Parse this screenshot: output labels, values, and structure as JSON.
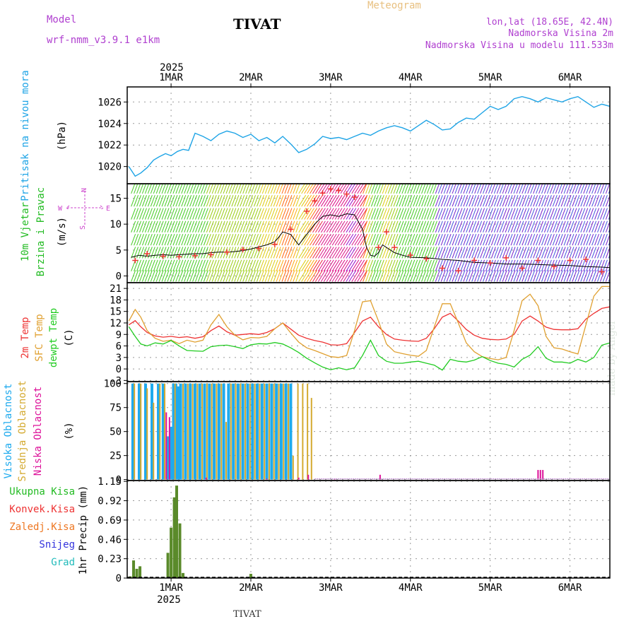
{
  "header": {
    "model_label": "Model",
    "model_name": "wrf-nmm_v3.9.1 e1km",
    "title": "TIVAT",
    "meteogram": "Meteogram",
    "lonlat": "lon,lat (18.65E, 42.4N)",
    "elevation": "Nadmorska Visina 2m",
    "model_elevation": "Nadmorska Visina u modelu 111.533m"
  },
  "footer": {
    "station": "TIVAT"
  },
  "watermark": "made by Angel",
  "colors": {
    "pressure": "#1ea4e6",
    "temp2m": "#ee3333",
    "sfc": "#e0a030",
    "dewpt": "#22cc22",
    "visoka": "#1eaaee",
    "srednja": "#d4aa30",
    "niska": "#dd1199",
    "ukupna": "#22bb22",
    "konvek": "#ee3333",
    "zaledj": "#ee7722",
    "snijeg": "#3333dd",
    "grad": "#22bbbb",
    "precip_bar": "#5a8a2a",
    "windspeed_line": "#000000",
    "gust_marker": "#ee3333",
    "compass": "#cc44cc"
  },
  "chart_data": [
    {
      "panel": "pressure",
      "type": "line",
      "ylabels": [
        "Pritisak na nivou mora",
        "(hPa)"
      ],
      "yticks": [
        1020,
        1022,
        1024,
        1026
      ],
      "ylim": [
        1018.4,
        1027.4
      ],
      "xlim": [
        0.45,
        6.5
      ],
      "x_tick_labels": [
        "1MAR",
        "2MAR",
        "3MAR",
        "4MAR",
        "5MAR",
        "6MAR"
      ],
      "x_year_label": "2025",
      "grid": true,
      "x": [
        0.47,
        0.55,
        0.62,
        0.7,
        0.78,
        0.85,
        0.93,
        1.0,
        1.08,
        1.15,
        1.22,
        1.3,
        1.4,
        1.5,
        1.6,
        1.7,
        1.8,
        1.9,
        2.0,
        2.1,
        2.2,
        2.3,
        2.4,
        2.5,
        2.6,
        2.7,
        2.8,
        2.9,
        3.0,
        3.1,
        3.2,
        3.3,
        3.4,
        3.5,
        3.6,
        3.7,
        3.8,
        3.9,
        4.0,
        4.1,
        4.2,
        4.3,
        4.4,
        4.5,
        4.6,
        4.7,
        4.8,
        4.9,
        5.0,
        5.1,
        5.2,
        5.3,
        5.4,
        5.5,
        5.6,
        5.7,
        5.8,
        5.9,
        6.0,
        6.1,
        6.2,
        6.3,
        6.4,
        6.5
      ],
      "y": [
        1020.0,
        1019.1,
        1019.4,
        1019.9,
        1020.6,
        1020.9,
        1021.2,
        1021.0,
        1021.4,
        1021.6,
        1021.5,
        1023.1,
        1022.8,
        1022.4,
        1023.0,
        1023.3,
        1023.1,
        1022.7,
        1023.0,
        1022.4,
        1022.7,
        1022.2,
        1022.8,
        1022.1,
        1021.3,
        1021.6,
        1022.1,
        1022.8,
        1022.6,
        1022.7,
        1022.5,
        1022.8,
        1023.1,
        1022.9,
        1023.3,
        1023.6,
        1023.8,
        1023.6,
        1023.3,
        1023.8,
        1024.3,
        1023.9,
        1023.4,
        1023.5,
        1024.1,
        1024.5,
        1024.4,
        1025.0,
        1025.6,
        1025.3,
        1025.6,
        1026.3,
        1026.5,
        1026.3,
        1026.0,
        1026.4,
        1026.2,
        1026.0,
        1026.3,
        1026.5,
        1026.0,
        1025.5,
        1025.8,
        1025.6
      ]
    },
    {
      "panel": "wind",
      "type": "wind_barbs_line",
      "ylabels": [
        "10m Vjetar",
        "Brzina i Pravac",
        "(m/s)"
      ],
      "compass": {
        "n": "N",
        "s": "S",
        "e": "E",
        "w": "W"
      },
      "yticks": [
        0,
        5,
        10,
        15
      ],
      "ylim": [
        -1.3,
        17.8
      ],
      "x": [
        0.5,
        0.6,
        0.7,
        0.8,
        0.9,
        1.0,
        1.1,
        1.2,
        1.3,
        1.4,
        1.5,
        1.6,
        1.7,
        1.8,
        1.9,
        2.0,
        2.1,
        2.2,
        2.3,
        2.35,
        2.4,
        2.5,
        2.6,
        2.7,
        2.8,
        2.9,
        3.0,
        3.1,
        3.2,
        3.3,
        3.4,
        3.45,
        3.5,
        3.55,
        3.6,
        3.65,
        3.7,
        3.8,
        3.9,
        4.0,
        4.2,
        4.4,
        4.6,
        4.8,
        5.0,
        5.2,
        5.4,
        5.6,
        5.8,
        6.0,
        6.2,
        6.4,
        6.5
      ],
      "speed": [
        3.6,
        4.0,
        3.8,
        4.0,
        4.1,
        4.0,
        4.1,
        4.2,
        4.3,
        4.3,
        4.5,
        4.6,
        4.6,
        4.7,
        4.9,
        5.2,
        5.6,
        6.0,
        6.6,
        7.5,
        8.5,
        8.0,
        6.0,
        8.0,
        10.0,
        11.5,
        11.8,
        11.5,
        12.0,
        11.8,
        9.0,
        5.5,
        4.0,
        3.8,
        4.5,
        6.0,
        5.5,
        4.5,
        4.0,
        3.6,
        3.5,
        3.2,
        3.0,
        2.6,
        2.5,
        2.3,
        2.3,
        2.2,
        2.1,
        2.0,
        1.8,
        1.7,
        1.6
      ],
      "gust_x": [
        0.55,
        0.7,
        0.9,
        1.1,
        1.3,
        1.5,
        1.7,
        1.9,
        2.1,
        2.3,
        2.5,
        2.7,
        2.8,
        2.9,
        3.0,
        3.1,
        3.2,
        3.3,
        3.6,
        3.7,
        3.8,
        4.0,
        4.2,
        4.4,
        4.6,
        4.8,
        5.0,
        5.2,
        5.4,
        5.6,
        5.8,
        6.0,
        6.2,
        6.4
      ],
      "gust": [
        3.0,
        4.3,
        3.8,
        3.7,
        3.9,
        4.1,
        4.6,
        5.1,
        5.3,
        6.1,
        9.0,
        12.5,
        14.5,
        16.0,
        16.8,
        16.5,
        15.8,
        15.2,
        5.5,
        8.5,
        5.5,
        4.0,
        3.3,
        1.5,
        1.0,
        3.0,
        2.5,
        3.5,
        1.5,
        3.0,
        1.8,
        3.0,
        3.2,
        0.8
      ]
    },
    {
      "panel": "temperature",
      "type": "line",
      "ylabels": [
        "2m Temp",
        "SFC Temp",
        "dewpt Temp",
        "(C)"
      ],
      "yticks": [
        -3,
        0,
        3,
        6,
        9,
        12,
        15,
        18,
        21
      ],
      "ylim": [
        -3.3,
        22.5
      ],
      "x": [
        0.47,
        0.55,
        0.62,
        0.7,
        0.8,
        0.9,
        1.0,
        1.1,
        1.2,
        1.3,
        1.4,
        1.5,
        1.6,
        1.7,
        1.8,
        1.9,
        2.0,
        2.1,
        2.2,
        2.3,
        2.4,
        2.5,
        2.6,
        2.7,
        2.8,
        2.9,
        3.0,
        3.1,
        3.2,
        3.3,
        3.4,
        3.5,
        3.6,
        3.7,
        3.8,
        3.9,
        4.0,
        4.1,
        4.2,
        4.3,
        4.4,
        4.5,
        4.6,
        4.7,
        4.8,
        4.9,
        5.0,
        5.1,
        5.2,
        5.3,
        5.4,
        5.5,
        5.6,
        5.7,
        5.8,
        5.9,
        6.0,
        6.1,
        6.2,
        6.3,
        6.4,
        6.5
      ],
      "series": [
        {
          "name": "2m Temp",
          "y": [
            11.5,
            12.6,
            11.0,
            9.5,
            8.6,
            8.3,
            8.5,
            8.2,
            8.4,
            8.0,
            8.4,
            10.0,
            11.2,
            9.7,
            8.8,
            9.0,
            9.2,
            9.0,
            9.5,
            10.5,
            12.0,
            10.4,
            8.8,
            8.0,
            7.4,
            7.0,
            6.3,
            6.2,
            6.6,
            9.5,
            12.5,
            13.5,
            11.0,
            9.0,
            7.8,
            7.5,
            7.3,
            7.2,
            8.0,
            10.5,
            13.5,
            14.5,
            12.5,
            10.3,
            8.8,
            8.0,
            7.7,
            7.6,
            7.8,
            9.0,
            12.5,
            13.8,
            12.5,
            10.9,
            10.3,
            10.2,
            10.2,
            10.5,
            13.0,
            14.5,
            15.8,
            16.2
          ]
        },
        {
          "name": "SFC Temp",
          "y": [
            12.5,
            15.5,
            13.5,
            10.0,
            8.0,
            7.2,
            7.5,
            6.6,
            7.5,
            7.0,
            7.5,
            11.5,
            14.2,
            11.0,
            8.8,
            7.6,
            8.2,
            8.1,
            8.5,
            10.5,
            12.0,
            9.4,
            7.0,
            5.5,
            4.8,
            4.0,
            3.2,
            3.0,
            3.5,
            10.0,
            17.5,
            17.8,
            12.5,
            6.5,
            4.5,
            4.0,
            3.6,
            3.3,
            4.8,
            11.0,
            17.0,
            17.0,
            12.0,
            6.8,
            4.5,
            3.2,
            2.7,
            2.4,
            3.0,
            10.0,
            17.8,
            19.5,
            16.5,
            8.5,
            5.5,
            5.2,
            4.5,
            3.9,
            11.5,
            19.0,
            21.5,
            21.5
          ]
        },
        {
          "name": "dewpt Temp",
          "y": [
            11.0,
            8.5,
            6.5,
            6.0,
            6.8,
            6.5,
            7.4,
            6.0,
            4.8,
            4.7,
            4.6,
            5.8,
            6.1,
            6.2,
            5.8,
            5.3,
            6.3,
            6.6,
            6.5,
            6.9,
            6.5,
            5.5,
            4.3,
            2.8,
            1.6,
            0.5,
            -0.2,
            0.3,
            -0.2,
            0.3,
            3.5,
            7.5,
            3.5,
            2.0,
            1.5,
            1.5,
            1.8,
            2.0,
            1.5,
            1.0,
            -0.3,
            2.5,
            2.0,
            1.8,
            2.3,
            3.2,
            2.2,
            1.5,
            1.2,
            0.5,
            2.5,
            3.6,
            5.8,
            2.8,
            1.8,
            1.8,
            1.5,
            2.5,
            1.8,
            3.0,
            6.2,
            6.8
          ]
        }
      ]
    },
    {
      "panel": "cloud",
      "type": "bar",
      "ylabels": [
        "Visoka Oblacnost",
        "Srednja Oblacnost",
        "Niska Oblacnost",
        "(%)"
      ],
      "yticks": [
        0,
        25,
        50,
        75,
        100
      ],
      "ylim": [
        -1,
        102
      ],
      "series": [
        {
          "name": "Visoka Oblacnost",
          "x": [
            0.52,
            0.6,
            0.68,
            0.76,
            0.84,
            0.9,
            0.96,
            1.0,
            1.03,
            1.06,
            1.09,
            1.12,
            1.18,
            1.24,
            1.3,
            1.36,
            1.42,
            1.48,
            1.54,
            1.6,
            1.66,
            1.72,
            1.78,
            1.84,
            1.9,
            1.96,
            2.02,
            2.08,
            2.14,
            2.2,
            2.26,
            2.32,
            2.38,
            2.44,
            2.5
          ],
          "y": [
            100,
            100,
            100,
            100,
            100,
            100,
            45,
            55,
            100,
            100,
            97,
            100,
            100,
            100,
            100,
            100,
            100,
            100,
            100,
            100,
            100,
            100,
            100,
            100,
            100,
            100,
            100,
            100,
            100,
            100,
            100,
            100,
            100,
            100,
            100
          ]
        },
        {
          "name": "Srednja Oblacnost",
          "x": [
            0.54,
            0.62,
            0.7,
            0.78,
            0.86,
            0.92,
            1.05,
            1.15,
            1.21,
            1.27,
            1.33,
            1.39,
            1.45,
            1.51,
            1.57,
            1.63,
            1.69,
            1.75,
            1.81,
            1.87,
            1.93,
            1.99,
            2.05,
            2.11,
            2.17,
            2.23,
            2.29,
            2.35,
            2.41,
            2.47,
            2.53,
            2.59,
            2.65,
            2.71,
            2.76
          ],
          "y": [
            100,
            100,
            95,
            80,
            100,
            100,
            100,
            100,
            100,
            100,
            100,
            100,
            100,
            100,
            100,
            100,
            60,
            100,
            100,
            100,
            100,
            100,
            100,
            100,
            100,
            100,
            100,
            100,
            100,
            100,
            25,
            100,
            100,
            100,
            85
          ]
        },
        {
          "name": "Niska Oblacnost",
          "x": [
            0.94,
            0.98,
            1.44,
            2.2,
            2.6,
            2.72,
            3.05,
            3.62,
            5.6,
            5.63,
            5.66
          ],
          "y": [
            70,
            65,
            2,
            1,
            2,
            5,
            1,
            5,
            10,
            10,
            10
          ]
        }
      ]
    },
    {
      "panel": "precip",
      "type": "bar",
      "ylabels": [
        "1hr Precip (mm)"
      ],
      "legend": [
        "Ukupna Kisa",
        "Konvek.Kisa",
        "Zaledj.Kisa",
        "Snijeg",
        "Grad"
      ],
      "yticks": [
        0,
        0.23,
        0.46,
        0.69,
        0.92,
        1.15
      ],
      "ytick_labels": [
        "0",
        "0.23",
        "0.46",
        "0.69",
        "0.92",
        "1.15"
      ],
      "ylim": [
        0,
        1.16
      ],
      "x": [
        0.49,
        0.53,
        0.57,
        0.61,
        0.96,
        1.0,
        1.04,
        1.07,
        1.11,
        1.15,
        2.0
      ],
      "y": [
        0.02,
        0.21,
        0.11,
        0.14,
        0.3,
        0.6,
        0.96,
        1.1,
        0.65,
        0.06,
        0.05
      ]
    }
  ]
}
